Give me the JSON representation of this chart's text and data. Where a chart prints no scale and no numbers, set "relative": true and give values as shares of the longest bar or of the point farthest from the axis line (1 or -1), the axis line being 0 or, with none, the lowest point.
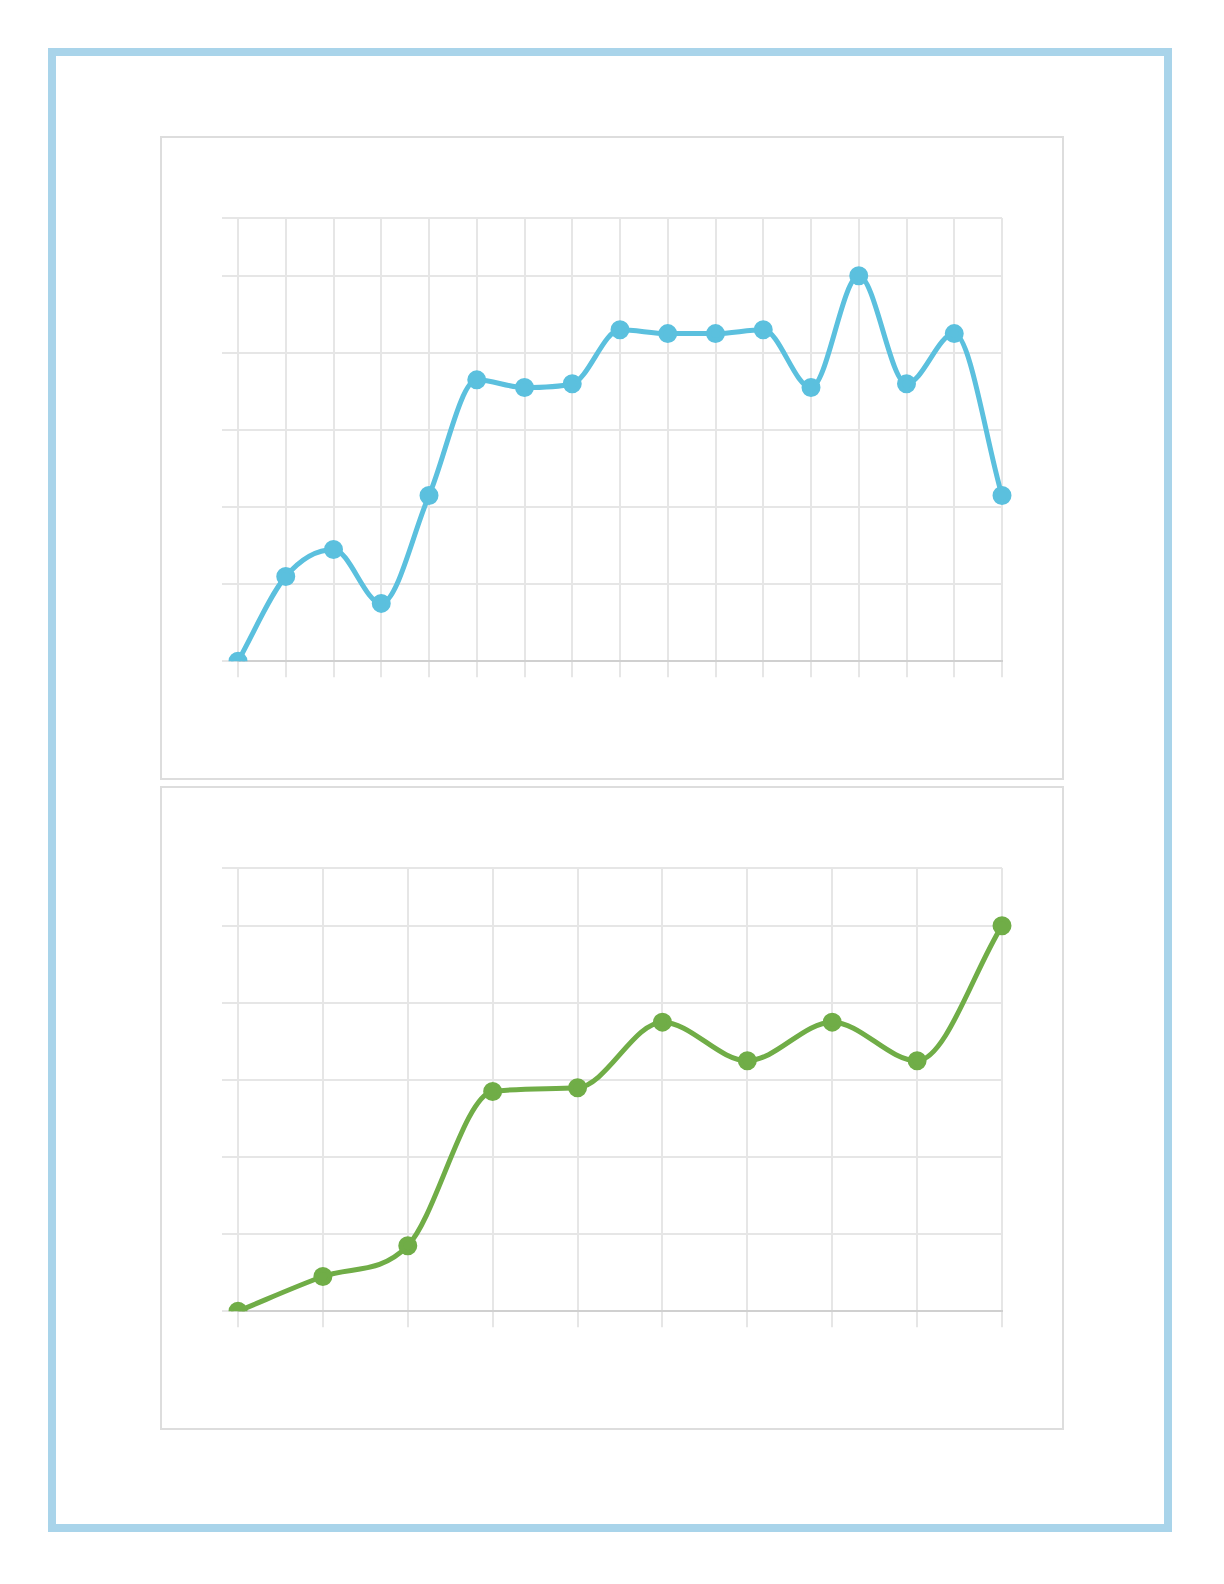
{
  "chart_data": [
    {
      "type": "line",
      "relative": true,
      "categories": [
        null,
        null,
        null,
        null,
        null,
        null,
        null,
        null,
        null,
        null,
        null,
        null,
        null,
        null,
        null,
        null,
        null
      ],
      "series": [
        {
          "color": "#5bc0de",
          "values": [
            0,
            0.22,
            0.29,
            0.15,
            0.43,
            0.73,
            0.71,
            0.72,
            0.86,
            0.85,
            0.85,
            0.86,
            0.71,
            1,
            0.72,
            0.85,
            0.43
          ]
        }
      ],
      "grid": true,
      "legend": false,
      "marker": "circle",
      "line_style": "solid"
    },
    {
      "type": "line",
      "relative": true,
      "categories": [
        null,
        null,
        null,
        null,
        null,
        null,
        null,
        null,
        null,
        null
      ],
      "series": [
        {
          "color": "#70ad47",
          "values": [
            0,
            0.09,
            0.17,
            0.57,
            0.58,
            0.75,
            0.65,
            0.75,
            0.65,
            1
          ]
        }
      ],
      "grid": true,
      "legend": false,
      "marker": "circle",
      "line_style": "solid"
    }
  ]
}
